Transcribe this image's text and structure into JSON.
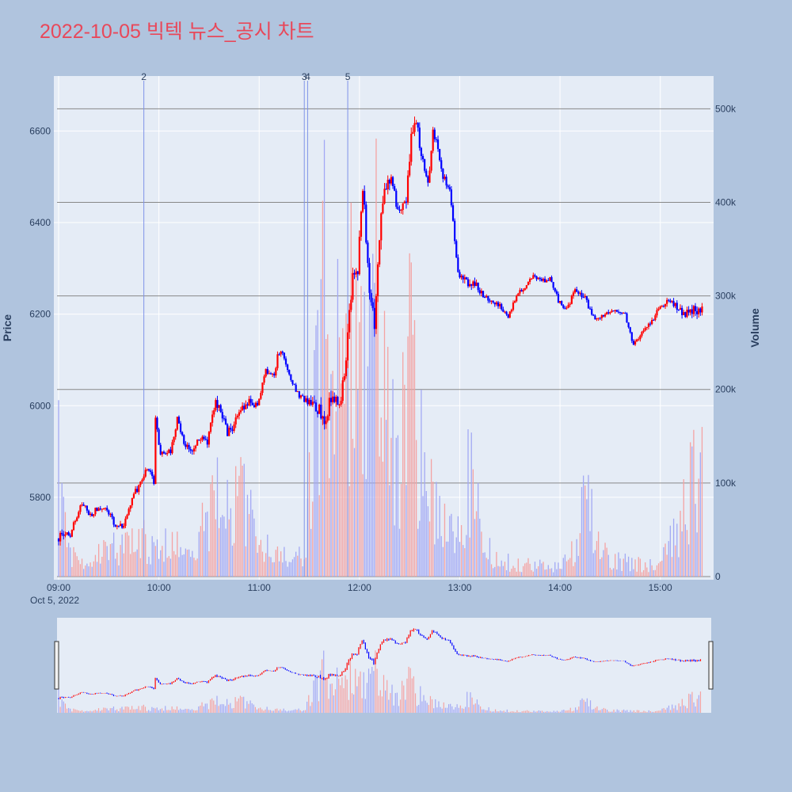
{
  "title": "2022-10-05 빅텍 뉴스_공시 차트",
  "colors": {
    "page_bg": "#b0c4de",
    "plot_bg": "#e5ecf6",
    "up": "#ff0000",
    "down": "#0000ff",
    "up_volume": "#f4a3a3",
    "down_volume": "#a3a9f4",
    "gridline": "#ffffff",
    "volume_gridline": "#888888",
    "news_line": "#7f93e8",
    "text": "#2a3f5f",
    "title": "#e8485a"
  },
  "chart_data": {
    "type": "candlestick",
    "title": "2022-10-05 빅텍 뉴스_공시 차트",
    "date_label": "Oct 5, 2022",
    "x_range": [
      "09:00",
      "15:30"
    ],
    "x_ticks": [
      "09:00",
      "10:00",
      "11:00",
      "12:00",
      "13:00",
      "14:00",
      "15:00"
    ],
    "price_axis": {
      "label": "Price",
      "range": [
        5620,
        6720
      ],
      "ticks": [
        5800,
        6000,
        6200,
        6400,
        6600
      ]
    },
    "volume_axis": {
      "label": "Volume",
      "range": [
        0,
        535000
      ],
      "ticks": [
        0,
        100000,
        200000,
        300000,
        400000,
        500000
      ],
      "tick_labels": [
        "0",
        "100k",
        "200k",
        "300k",
        "400k",
        "500k"
      ]
    },
    "price_path": [
      [
        "09:00",
        5710
      ],
      [
        "09:08",
        5720
      ],
      [
        "09:15",
        5790
      ],
      [
        "09:20",
        5760
      ],
      [
        "09:25",
        5780
      ],
      [
        "09:30",
        5770
      ],
      [
        "09:35",
        5740
      ],
      [
        "09:40",
        5735
      ],
      [
        "09:45",
        5800
      ],
      [
        "09:50",
        5830
      ],
      [
        "09:52",
        5850
      ],
      [
        "09:55",
        5860
      ],
      [
        "09:58",
        5830
      ],
      [
        "09:59",
        5980
      ],
      [
        "10:02",
        5890
      ],
      [
        "10:05",
        5900
      ],
      [
        "10:08",
        5900
      ],
      [
        "10:12",
        5970
      ],
      [
        "10:15",
        5930
      ],
      [
        "10:18",
        5910
      ],
      [
        "10:22",
        5900
      ],
      [
        "10:25",
        5930
      ],
      [
        "10:30",
        5920
      ],
      [
        "10:35",
        6010
      ],
      [
        "10:38",
        5990
      ],
      [
        "10:42",
        5940
      ],
      [
        "10:45",
        5950
      ],
      [
        "10:50",
        5990
      ],
      [
        "10:55",
        6010
      ],
      [
        "11:00",
        6000
      ],
      [
        "11:05",
        6080
      ],
      [
        "11:10",
        6060
      ],
      [
        "11:12",
        6110
      ],
      [
        "11:15",
        6120
      ],
      [
        "11:18",
        6080
      ],
      [
        "11:20",
        6060
      ],
      [
        "11:25",
        6020
      ],
      [
        "11:30",
        6010
      ],
      [
        "11:35",
        5990
      ],
      [
        "11:40",
        5980
      ],
      [
        "11:45",
        6010
      ],
      [
        "11:50",
        6010
      ],
      [
        "11:53",
        6110
      ],
      [
        "11:57",
        6280
      ],
      [
        "12:00",
        6300
      ],
      [
        "12:03",
        6480
      ],
      [
        "12:07",
        6260
      ],
      [
        "12:10",
        6180
      ],
      [
        "12:13",
        6380
      ],
      [
        "12:16",
        6470
      ],
      [
        "12:20",
        6500
      ],
      [
        "12:23",
        6440
      ],
      [
        "12:26",
        6430
      ],
      [
        "12:29",
        6440
      ],
      [
        "12:32",
        6600
      ],
      [
        "12:35",
        6620
      ],
      [
        "12:38",
        6550
      ],
      [
        "12:42",
        6480
      ],
      [
        "12:45",
        6600
      ],
      [
        "12:48",
        6560
      ],
      [
        "12:51",
        6500
      ],
      [
        "12:55",
        6470
      ],
      [
        "13:00",
        6290
      ],
      [
        "13:05",
        6270
      ],
      [
        "13:10",
        6270
      ],
      [
        "13:15",
        6240
      ],
      [
        "13:20",
        6230
      ],
      [
        "13:25",
        6220
      ],
      [
        "13:30",
        6190
      ],
      [
        "13:35",
        6240
      ],
      [
        "13:40",
        6260
      ],
      [
        "13:45",
        6280
      ],
      [
        "13:50",
        6270
      ],
      [
        "13:55",
        6280
      ],
      [
        "14:00",
        6230
      ],
      [
        "14:05",
        6210
      ],
      [
        "14:10",
        6250
      ],
      [
        "14:15",
        6240
      ],
      [
        "14:20",
        6200
      ],
      [
        "14:25",
        6190
      ],
      [
        "14:30",
        6200
      ],
      [
        "14:35",
        6210
      ],
      [
        "14:40",
        6200
      ],
      [
        "14:45",
        6130
      ],
      [
        "14:50",
        6160
      ],
      [
        "14:55",
        6180
      ],
      [
        "15:00",
        6210
      ],
      [
        "15:05",
        6230
      ],
      [
        "15:10",
        6220
      ],
      [
        "15:15",
        6200
      ],
      [
        "15:20",
        6210
      ],
      [
        "15:25",
        6200
      ],
      [
        "15:30",
        6230
      ]
    ],
    "news_markers": [
      {
        "label": "2",
        "time": "09:51"
      },
      {
        "label": "3",
        "time": "11:27"
      },
      {
        "label": "4",
        "time": "11:29"
      },
      {
        "label": "5",
        "time": "11:53"
      }
    ],
    "volume_profile": [
      [
        "09:00",
        170000
      ],
      [
        "09:05",
        40000
      ],
      [
        "09:15",
        25000
      ],
      [
        "09:50",
        60000
      ],
      [
        "09:55",
        40000
      ],
      [
        "10:10",
        50000
      ],
      [
        "10:25",
        70000
      ],
      [
        "10:35",
        120000
      ],
      [
        "10:50",
        115000
      ],
      [
        "11:00",
        55000
      ],
      [
        "11:20",
        20000
      ],
      [
        "11:28",
        40000
      ],
      [
        "11:32",
        200000
      ],
      [
        "11:36",
        290000
      ],
      [
        "11:40",
        460000
      ],
      [
        "11:45",
        240000
      ],
      [
        "11:50",
        380000
      ],
      [
        "11:55",
        350000
      ],
      [
        "12:00",
        300000
      ],
      [
        "12:05",
        250000
      ],
      [
        "12:10",
        500000
      ],
      [
        "12:15",
        350000
      ],
      [
        "12:20",
        190000
      ],
      [
        "12:25",
        180000
      ],
      [
        "12:30",
        330000
      ],
      [
        "12:35",
        200000
      ],
      [
        "12:40",
        160000
      ],
      [
        "12:45",
        110000
      ],
      [
        "12:50",
        80000
      ],
      [
        "13:00",
        60000
      ],
      [
        "13:05",
        160000
      ],
      [
        "13:15",
        40000
      ],
      [
        "13:30",
        20000
      ],
      [
        "14:00",
        15000
      ],
      [
        "14:10",
        45000
      ],
      [
        "14:15",
        110000
      ],
      [
        "14:30",
        25000
      ],
      [
        "15:00",
        15000
      ],
      [
        "15:30",
        200000
      ]
    ],
    "volume_hlines": [
      0,
      100000,
      200000,
      300000,
      400000,
      500000
    ],
    "grid": true,
    "rangeslider": true
  }
}
